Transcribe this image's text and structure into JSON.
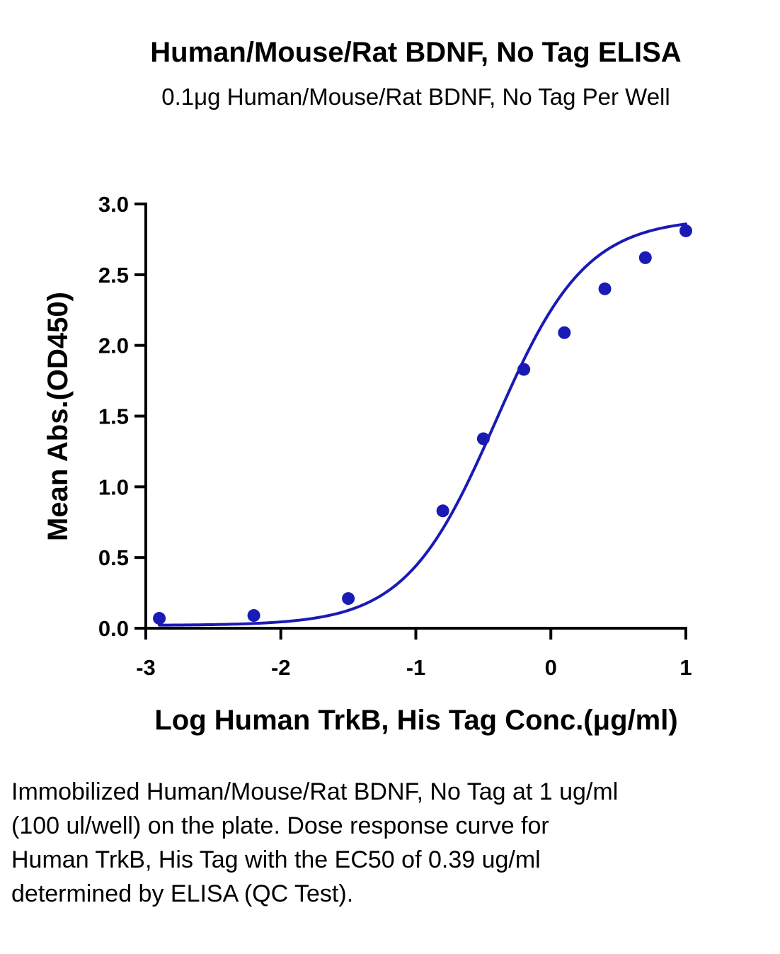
{
  "chart_data": {
    "type": "scatter",
    "title": "Human/Mouse/Rat BDNF, No Tag ELISA",
    "subtitle": "0.1μg Human/Mouse/Rat BDNF, No Tag Per Well",
    "xlabel": "Log Human TrkB, His Tag Conc.(μg/ml)",
    "ylabel": "Mean Abs.(OD450)",
    "xlim": [
      -3,
      1
    ],
    "ylim": [
      0,
      3
    ],
    "x_ticks": [
      -3,
      -2,
      -1,
      0,
      1
    ],
    "x_tick_labels": [
      "-3",
      "-2",
      "-1",
      "0",
      "1"
    ],
    "y_ticks": [
      0,
      0.5,
      1,
      1.5,
      2,
      2.5,
      3
    ],
    "y_tick_labels": [
      "0.0",
      "0.5",
      "1.0",
      "1.5",
      "2.0",
      "2.5",
      "3.0"
    ],
    "grid": false,
    "series": [
      {
        "points": [
          {
            "x": -2.9,
            "y": 0.07
          },
          {
            "x": -2.2,
            "y": 0.09
          },
          {
            "x": -1.5,
            "y": 0.21
          },
          {
            "x": -0.8,
            "y": 0.83
          },
          {
            "x": -0.5,
            "y": 1.34
          },
          {
            "x": -0.2,
            "y": 1.83
          },
          {
            "x": 0.1,
            "y": 2.09
          },
          {
            "x": 0.4,
            "y": 2.4
          },
          {
            "x": 0.7,
            "y": 2.62
          },
          {
            "x": 1.0,
            "y": 2.81
          }
        ],
        "fit": {
          "model": "4PL",
          "bottom": 0.02,
          "top": 2.9,
          "logEC50": -0.41,
          "hill": 1.3,
          "x_range": [
            -2.9,
            1.0
          ]
        }
      }
    ],
    "colors": {
      "series": "#1a1ab4",
      "axis": "#000000"
    }
  },
  "caption": "Immobilized Human/Mouse/Rat BDNF, No Tag at 1 ug/ml (100 ul/well) on the plate. Dose response curve for Human TrkB, His Tag with the EC50 of 0.39 ug/ml determined by ELISA (QC Test)."
}
